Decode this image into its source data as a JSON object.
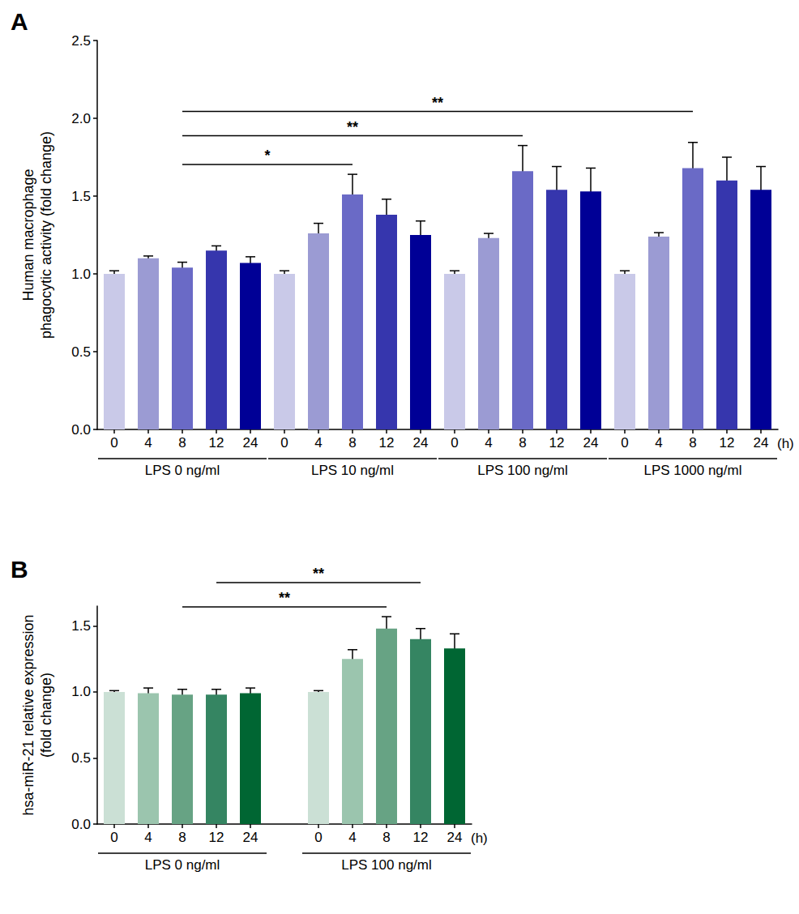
{
  "chart_data": [
    {
      "type": "bar",
      "title": "A",
      "y_label": "Human macrophage\nphagocytic activity (fold change)",
      "x_unit_label": "(h)",
      "ylim": [
        0,
        2.5
      ],
      "yticks": [
        {
          "value": 0,
          "label": "0.0"
        },
        0.5,
        {
          "value": 1,
          "label": "1.0"
        },
        1.5,
        {
          "value": 2,
          "label": "2.0"
        },
        2.5
      ],
      "grid": false,
      "groups": [
        {
          "name": "LPS 0 ng/ml",
          "categories": [
            "0",
            "4",
            "8",
            "12",
            "24"
          ],
          "values": [
            1.0,
            1.1,
            1.04,
            1.15,
            1.07
          ],
          "errors": [
            0.02,
            0.015,
            0.035,
            0.03,
            0.04
          ],
          "colors": [
            "#c9c9e8",
            "#9b9bd3",
            "#6a6ac6",
            "#3636ad",
            "#000096"
          ]
        },
        {
          "name": "LPS 10 ng/ml",
          "categories": [
            "0",
            "4",
            "8",
            "12",
            "24"
          ],
          "values": [
            1.0,
            1.26,
            1.51,
            1.38,
            1.25
          ],
          "errors": [
            0.02,
            0.065,
            0.13,
            0.1,
            0.09
          ],
          "colors": [
            "#c9c9e8",
            "#9b9bd3",
            "#6a6ac6",
            "#3636ad",
            "#000096"
          ]
        },
        {
          "name": "LPS 100 ng/ml",
          "categories": [
            "0",
            "4",
            "8",
            "12",
            "24"
          ],
          "values": [
            1.0,
            1.23,
            1.66,
            1.54,
            1.53
          ],
          "errors": [
            0.02,
            0.03,
            0.165,
            0.15,
            0.15
          ],
          "colors": [
            "#c9c9e8",
            "#9b9bd3",
            "#6a6ac6",
            "#3636ad",
            "#000096"
          ]
        },
        {
          "name": "LPS 1000 ng/ml",
          "categories": [
            "0",
            "4",
            "8",
            "12",
            "24"
          ],
          "values": [
            1.0,
            1.24,
            1.68,
            1.6,
            1.54
          ],
          "errors": [
            0.02,
            0.025,
            0.165,
            0.15,
            0.15
          ],
          "colors": [
            "#c9c9e8",
            "#9b9bd3",
            "#6a6ac6",
            "#3636ad",
            "#000096"
          ]
        }
      ],
      "annotations": [
        {
          "from": [
            0,
            2
          ],
          "to": [
            1,
            2
          ],
          "label": "*"
        },
        {
          "from": [
            0,
            2
          ],
          "to": [
            2,
            2
          ],
          "label": "**"
        },
        {
          "from": [
            0,
            2
          ],
          "to": [
            3,
            2
          ],
          "label": "**"
        }
      ]
    },
    {
      "type": "bar",
      "title": "B",
      "y_label": "hsa-miR-21 relative expression\n(fold change)",
      "x_unit_label": "(h)",
      "ylim": [
        0,
        1.65
      ],
      "yticks": [
        {
          "value": 0,
          "label": "0.0"
        },
        0.5,
        {
          "value": 1,
          "label": "1.0"
        },
        1.5
      ],
      "grid": false,
      "groups": [
        {
          "name": "LPS 0 ng/ml",
          "categories": [
            "0",
            "4",
            "8",
            "12",
            "24"
          ],
          "values": [
            1.0,
            0.99,
            0.98,
            0.98,
            0.99
          ],
          "errors": [
            0.01,
            0.04,
            0.04,
            0.04,
            0.04
          ],
          "colors": [
            "#cbe0d5",
            "#9bc5ae",
            "#67a384",
            "#358562",
            "#006633"
          ]
        },
        {
          "name": "LPS 100 ng/ml",
          "categories": [
            "0",
            "4",
            "8",
            "12",
            "24"
          ],
          "values": [
            1.0,
            1.25,
            1.48,
            1.4,
            1.33
          ],
          "errors": [
            0.01,
            0.07,
            0.09,
            0.08,
            0.11
          ],
          "colors": [
            "#cbe0d5",
            "#9bc5ae",
            "#67a384",
            "#358562",
            "#006633"
          ]
        }
      ],
      "annotations": [
        {
          "from": [
            0,
            2
          ],
          "to": [
            1,
            2
          ],
          "label": "**"
        },
        {
          "from": [
            0,
            3
          ],
          "to": [
            1,
            3
          ],
          "label": "**"
        }
      ]
    }
  ]
}
